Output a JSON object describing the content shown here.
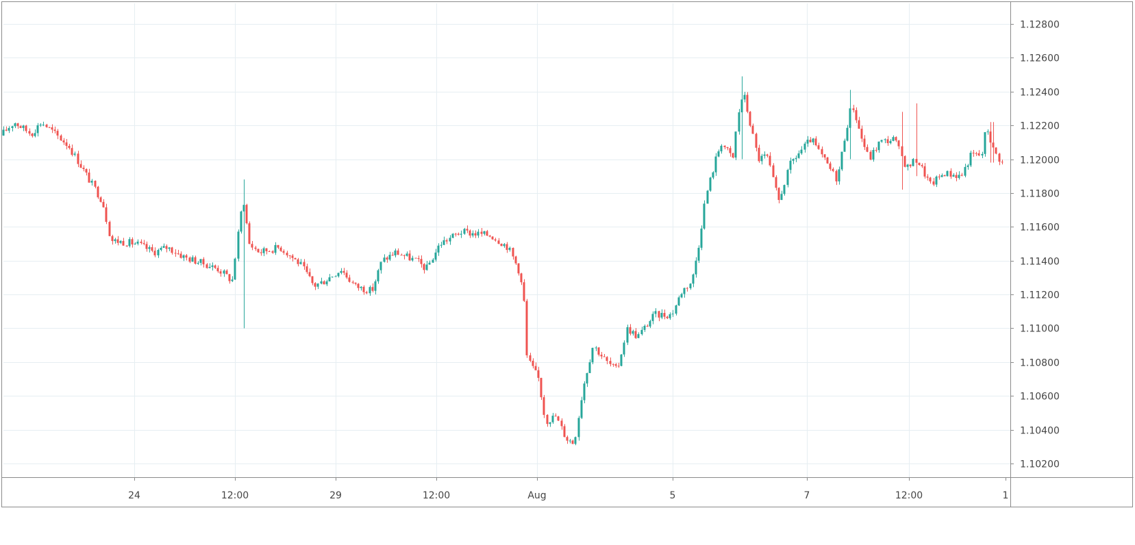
{
  "chart_data": {
    "type": "candlestick",
    "title": "",
    "xlabel": "",
    "ylabel": "",
    "ylim": [
      1.1015,
      1.1292
    ],
    "grid": true,
    "colors": {
      "up": "#26a69a",
      "down": "#ef5350",
      "grid": "#e6eef2",
      "frame": "#8a8a8a",
      "text": "#444444"
    },
    "y_ticks": [
      "1.12800",
      "1.12600",
      "1.12400",
      "1.12200",
      "1.12000",
      "1.11800",
      "1.11600",
      "1.11400",
      "1.11200",
      "1.11000",
      "1.10800",
      "1.10600",
      "1.10400",
      "1.10200"
    ],
    "x_ticks": [
      "24",
      "12:00",
      "29",
      "12:00",
      "Aug",
      "5",
      "7",
      "12:00",
      "1"
    ],
    "price_path": [
      {
        "t": 0,
        "p": 1.1214
      },
      {
        "t": 20,
        "p": 1.1222
      },
      {
        "t": 45,
        "p": 1.1215
      },
      {
        "t": 60,
        "p": 1.1222
      },
      {
        "t": 100,
        "p": 1.1208
      },
      {
        "t": 130,
        "p": 1.1188
      },
      {
        "t": 150,
        "p": 1.1175
      },
      {
        "t": 162,
        "p": 1.1152
      },
      {
        "t": 200,
        "p": 1.115
      },
      {
        "t": 225,
        "p": 1.1145
      },
      {
        "t": 245,
        "p": 1.1148
      },
      {
        "t": 270,
        "p": 1.1142
      },
      {
        "t": 300,
        "p": 1.1138
      },
      {
        "t": 320,
        "p": 1.1135
      },
      {
        "t": 340,
        "p": 1.1128
      },
      {
        "t": 350,
        "p": 1.116
      },
      {
        "t": 356,
        "p": 1.1178
      },
      {
        "t": 365,
        "p": 1.115
      },
      {
        "t": 380,
        "p": 1.1145
      },
      {
        "t": 410,
        "p": 1.1148
      },
      {
        "t": 440,
        "p": 1.1138
      },
      {
        "t": 460,
        "p": 1.1125
      },
      {
        "t": 475,
        "p": 1.1128
      },
      {
        "t": 500,
        "p": 1.1135
      },
      {
        "t": 520,
        "p": 1.1125
      },
      {
        "t": 545,
        "p": 1.1122
      },
      {
        "t": 560,
        "p": 1.114
      },
      {
        "t": 580,
        "p": 1.1145
      },
      {
        "t": 610,
        "p": 1.114
      },
      {
        "t": 625,
        "p": 1.1135
      },
      {
        "t": 645,
        "p": 1.115
      },
      {
        "t": 675,
        "p": 1.1157
      },
      {
        "t": 720,
        "p": 1.1155
      },
      {
        "t": 745,
        "p": 1.1148
      },
      {
        "t": 760,
        "p": 1.1135
      },
      {
        "t": 768,
        "p": 1.112
      },
      {
        "t": 773,
        "p": 1.1082
      },
      {
        "t": 790,
        "p": 1.107
      },
      {
        "t": 800,
        "p": 1.1045
      },
      {
        "t": 815,
        "p": 1.1048
      },
      {
        "t": 830,
        "p": 1.1035
      },
      {
        "t": 842,
        "p": 1.1032
      },
      {
        "t": 855,
        "p": 1.1065
      },
      {
        "t": 870,
        "p": 1.109
      },
      {
        "t": 890,
        "p": 1.108
      },
      {
        "t": 905,
        "p": 1.1075
      },
      {
        "t": 920,
        "p": 1.11
      },
      {
        "t": 935,
        "p": 1.1095
      },
      {
        "t": 960,
        "p": 1.1108
      },
      {
        "t": 985,
        "p": 1.1108
      },
      {
        "t": 1000,
        "p": 1.1122
      },
      {
        "t": 1015,
        "p": 1.1128
      },
      {
        "t": 1025,
        "p": 1.115
      },
      {
        "t": 1035,
        "p": 1.1178
      },
      {
        "t": 1050,
        "p": 1.12
      },
      {
        "t": 1058,
        "p": 1.121
      },
      {
        "t": 1075,
        "p": 1.12
      },
      {
        "t": 1082,
        "p": 1.1225
      },
      {
        "t": 1090,
        "p": 1.124
      },
      {
        "t": 1100,
        "p": 1.1222
      },
      {
        "t": 1112,
        "p": 1.12
      },
      {
        "t": 1125,
        "p": 1.1202
      },
      {
        "t": 1142,
        "p": 1.1175
      },
      {
        "t": 1160,
        "p": 1.1198
      },
      {
        "t": 1190,
        "p": 1.1212
      },
      {
        "t": 1205,
        "p": 1.1202
      },
      {
        "t": 1228,
        "p": 1.1188
      },
      {
        "t": 1240,
        "p": 1.1215
      },
      {
        "t": 1250,
        "p": 1.1233
      },
      {
        "t": 1262,
        "p": 1.1215
      },
      {
        "t": 1275,
        "p": 1.12
      },
      {
        "t": 1290,
        "p": 1.121
      },
      {
        "t": 1312,
        "p": 1.1212
      },
      {
        "t": 1330,
        "p": 1.1195
      },
      {
        "t": 1345,
        "p": 1.12
      },
      {
        "t": 1365,
        "p": 1.1185
      },
      {
        "t": 1385,
        "p": 1.1192
      },
      {
        "t": 1410,
        "p": 1.119
      },
      {
        "t": 1425,
        "p": 1.1203
      },
      {
        "t": 1440,
        "p": 1.1202
      },
      {
        "t": 1447,
        "p": 1.122
      },
      {
        "t": 1458,
        "p": 1.1205
      },
      {
        "t": 1470,
        "p": 1.1198
      }
    ],
    "spikes": [
      {
        "t": 352,
        "low": 1.11,
        "high": 1.1188
      },
      {
        "t": 1085,
        "low": 1.12,
        "high": 1.1249
      },
      {
        "t": 1243,
        "low": 1.12,
        "high": 1.1241
      },
      {
        "t": 1318,
        "low": 1.1182,
        "high": 1.1228
      },
      {
        "t": 1341,
        "low": 1.119,
        "high": 1.1233
      },
      {
        "t": 1451,
        "low": 1.1198,
        "high": 1.1222
      }
    ]
  }
}
